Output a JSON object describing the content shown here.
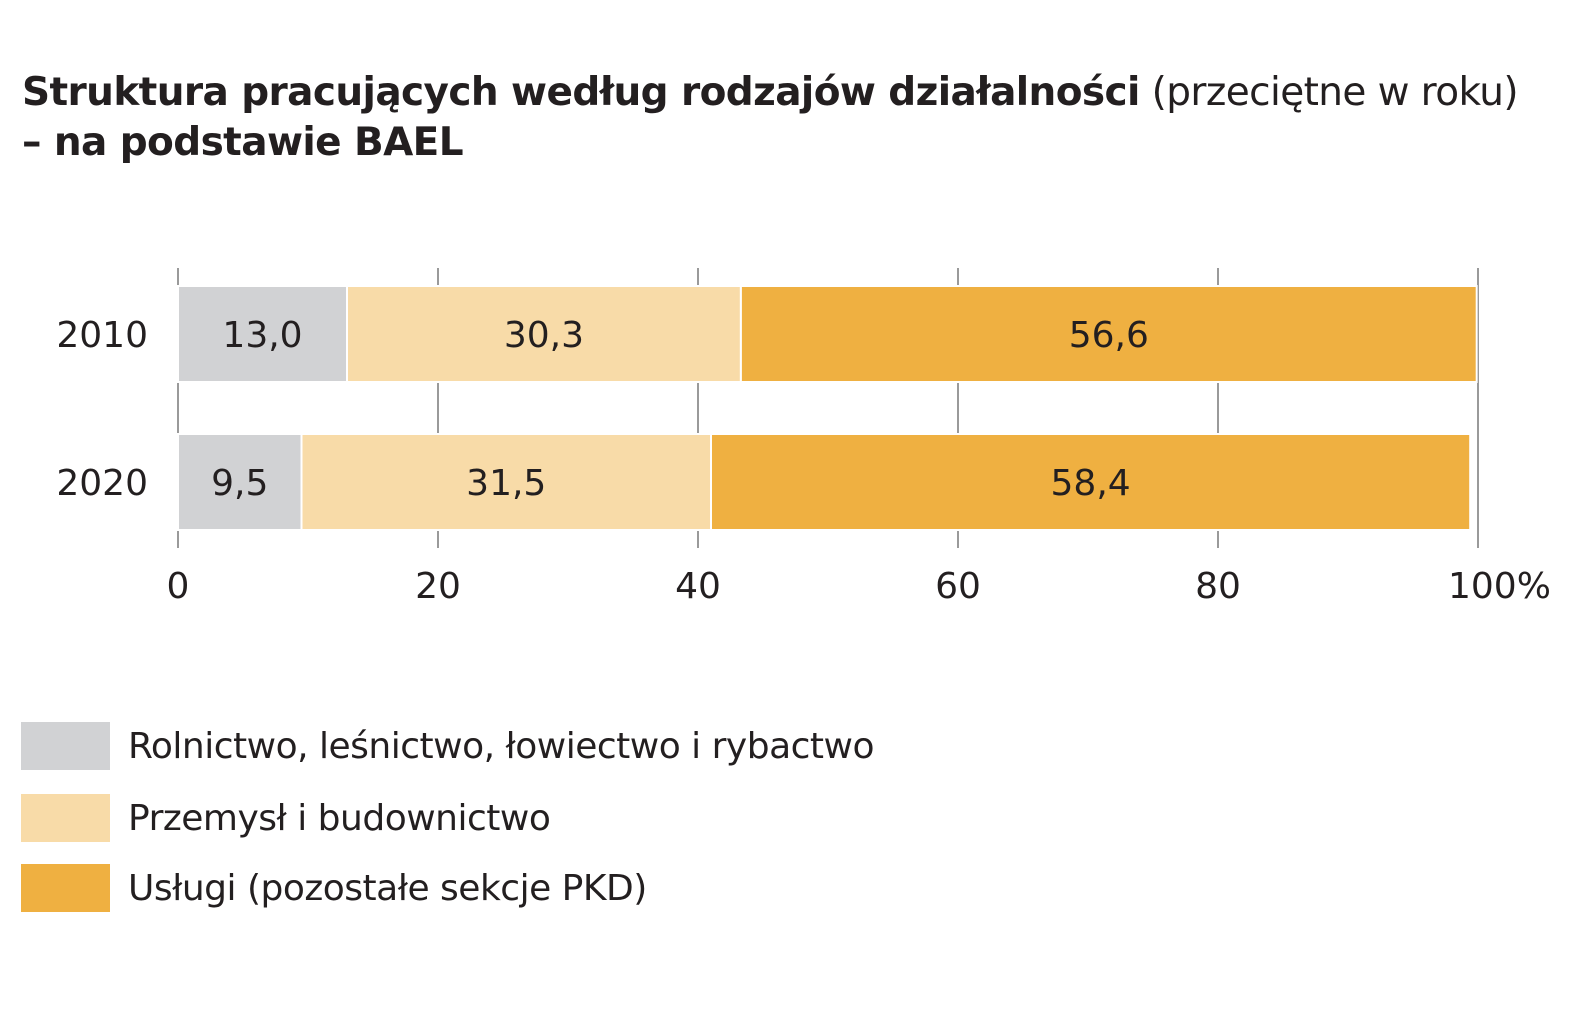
{
  "title": {
    "bold_part": "Struktura pracujących według rodzajów działalności",
    "light_part": "(przeciętne w roku)",
    "line2": "– na podstawie BAEL"
  },
  "colors": {
    "agriculture": "#d1d2d4",
    "industry": "#f8dba8",
    "services": "#efb041",
    "gridline": "#808080",
    "text": "#231f20"
  },
  "chart_data": {
    "type": "bar",
    "orientation": "horizontal",
    "stacked": true,
    "categories": [
      "2010",
      "2020"
    ],
    "series": [
      {
        "name": "Rolnictwo, leśnictwo, łowiectwo i rybactwo",
        "values": [
          13.0,
          9.5
        ],
        "labels": [
          "13,0",
          "9,5"
        ],
        "color": "#d1d2d4"
      },
      {
        "name": "Przemysł i budownictwo",
        "values": [
          30.3,
          31.5
        ],
        "labels": [
          "30,3",
          "31,5"
        ],
        "color": "#f8dba8"
      },
      {
        "name": "Usługi (pozostałe sekcje PKD)",
        "values": [
          56.6,
          58.4
        ],
        "labels": [
          "56,6",
          "58,4"
        ],
        "color": "#efb041"
      }
    ],
    "xlim": [
      0,
      100
    ],
    "xticks": [
      0,
      20,
      40,
      60,
      80,
      100
    ],
    "xtick_labels": [
      "0",
      "20",
      "40",
      "60",
      "80",
      "100%"
    ],
    "grid": true,
    "legend_position": "bottom-left"
  }
}
